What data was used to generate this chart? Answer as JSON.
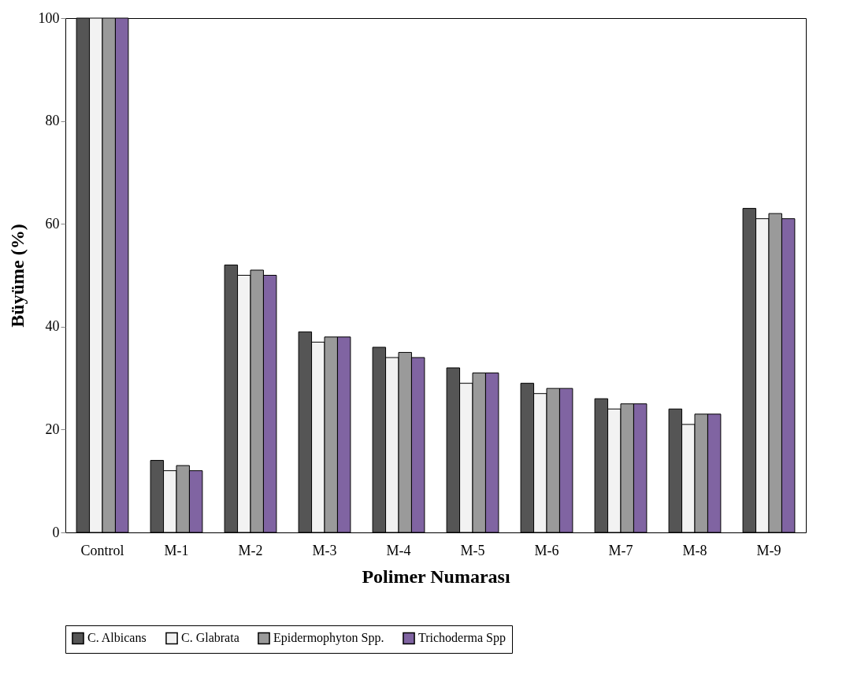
{
  "chart_data": {
    "type": "bar",
    "xlabel": "Polimer Numarası",
    "ylabel": "Büyüme (%)",
    "categories": [
      "Control",
      "M-1",
      "M-2",
      "M-3",
      "M-4",
      "M-5",
      "M-6",
      "M-7",
      "M-8",
      "M-9"
    ],
    "series": [
      {
        "name": "C. Albicans",
        "color": "#555555",
        "values": [
          100,
          14,
          52,
          39,
          36,
          32,
          29,
          26,
          24,
          63
        ]
      },
      {
        "name": "C. Glabrata",
        "color": "#f2f2f2",
        "values": [
          100,
          12,
          50,
          37,
          34,
          29,
          27,
          24,
          21,
          61
        ]
      },
      {
        "name": "Epidermophyton Spp.",
        "color": "#9a9a9a",
        "values": [
          100,
          13,
          51,
          38,
          35,
          31,
          28,
          25,
          23,
          62
        ]
      },
      {
        "name": "Trichoderma Spp",
        "color": "#8064a2",
        "values": [
          100,
          12,
          50,
          38,
          34,
          31,
          28,
          25,
          23,
          61
        ]
      }
    ],
    "ylim": [
      0,
      100
    ],
    "yticks": [
      0,
      20,
      40,
      60,
      80,
      100
    ],
    "grid": false,
    "legend": "bottom"
  }
}
